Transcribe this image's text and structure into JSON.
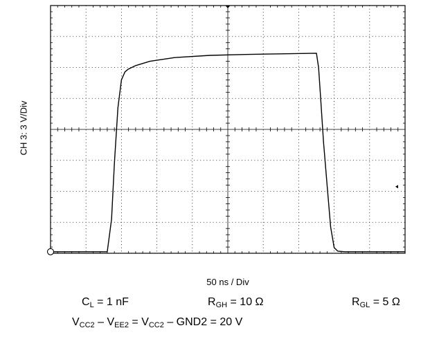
{
  "chart_data": {
    "type": "line",
    "title": "",
    "ylabel": "CH 3: 3 V/Div",
    "xlabel": "50 ns / Div",
    "grid": true,
    "xlim_div": [
      0,
      10
    ],
    "ylim_div": [
      0,
      8
    ],
    "series": [
      {
        "x_div": [
          0,
          1.6,
          1.72,
          1.8,
          1.9,
          2.0,
          2.1,
          2.2,
          2.4,
          2.8,
          3.5,
          4.5,
          5.5,
          6.5,
          7.5,
          7.56,
          7.62,
          7.7,
          7.8,
          7.9,
          8.0,
          8.1,
          8.3,
          9.0,
          10.0
        ],
        "y_div": [
          0.05,
          0.05,
          1.1,
          2.9,
          4.7,
          5.6,
          5.86,
          5.95,
          6.06,
          6.2,
          6.32,
          6.39,
          6.42,
          6.44,
          6.46,
          6.0,
          5.0,
          3.6,
          2.2,
          0.85,
          0.18,
          0.07,
          0.05,
          0.05,
          0.05
        ]
      }
    ],
    "ground_marker": "circle-marker",
    "trigger_marker": "arrow-marker"
  },
  "conditions": {
    "cl": {
      "main": "C",
      "sub": "L",
      "value": " = 1 nF"
    },
    "rgh": {
      "main": "R",
      "sub": "GH",
      "value": " = 10 Ω"
    },
    "rgl": {
      "main": "R",
      "sub": "GL",
      "value": " = 5 Ω"
    },
    "vline": {
      "v1": "V",
      "s1": "CC2",
      "t1": " – V",
      "s2": "EE2",
      "t2": " = V",
      "s3": "CC2",
      "t3": " – GND2 = 20 V"
    }
  }
}
